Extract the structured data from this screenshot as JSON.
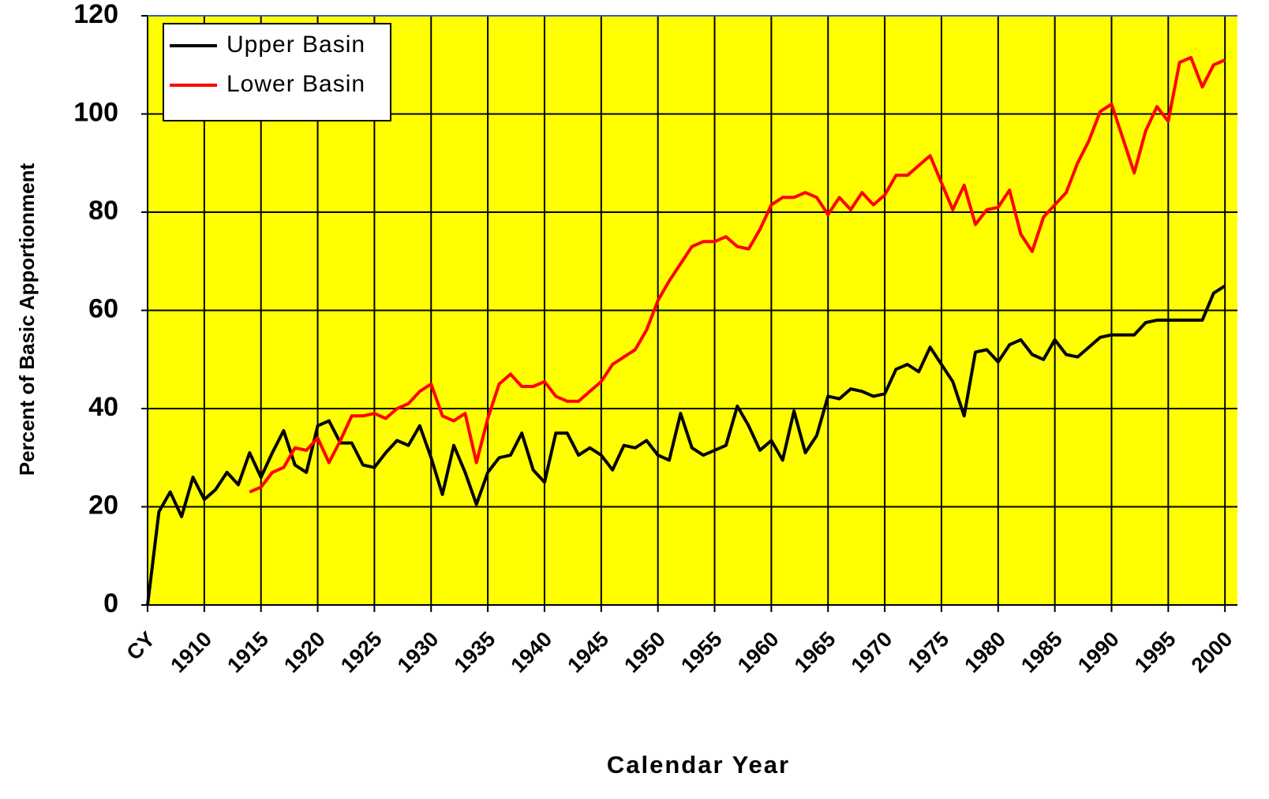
{
  "chart_data": {
    "type": "line",
    "xlabel": "Calendar Year",
    "ylabel": "Percent of Basic Apportionment",
    "x": [
      1905,
      1906,
      1907,
      1908,
      1909,
      1910,
      1911,
      1912,
      1913,
      1914,
      1915,
      1916,
      1917,
      1918,
      1919,
      1920,
      1921,
      1922,
      1923,
      1924,
      1925,
      1926,
      1927,
      1928,
      1929,
      1930,
      1931,
      1932,
      1933,
      1934,
      1935,
      1936,
      1937,
      1938,
      1939,
      1940,
      1941,
      1942,
      1943,
      1944,
      1945,
      1946,
      1947,
      1948,
      1949,
      1950,
      1951,
      1952,
      1953,
      1954,
      1955,
      1956,
      1957,
      1958,
      1959,
      1960,
      1961,
      1962,
      1963,
      1964,
      1965,
      1966,
      1967,
      1968,
      1969,
      1970,
      1971,
      1972,
      1973,
      1974,
      1975,
      1976,
      1977,
      1978,
      1979,
      1980,
      1981,
      1982,
      1983,
      1984,
      1985,
      1986,
      1987,
      1988,
      1989,
      1990,
      1991,
      1992,
      1993,
      1994,
      1995,
      1996,
      1997,
      1998,
      1999,
      2000
    ],
    "series": [
      {
        "name": "Upper Basin",
        "color": "#000000",
        "values": [
          0,
          19,
          23,
          18,
          26,
          21.5,
          23.5,
          27,
          24.5,
          31,
          26,
          31,
          35.5,
          28.5,
          27,
          36.5,
          37.5,
          33,
          33,
          28.5,
          28,
          31,
          33.5,
          32.5,
          36.5,
          30,
          22.5,
          32.5,
          27,
          20.5,
          27,
          30,
          30.5,
          35,
          27.5,
          25,
          35,
          35,
          30.5,
          32,
          30.5,
          27.5,
          32.5,
          32,
          33.5,
          30.5,
          29.5,
          39,
          32,
          30.5,
          31.5,
          32.5,
          40.5,
          36.5,
          31.5,
          33.5,
          29.5,
          39.5,
          31,
          34.5,
          42.5,
          42,
          44,
          43.5,
          42.5,
          43,
          48,
          49,
          47.5,
          52.5,
          49,
          45.5,
          38.5,
          51.5,
          52,
          49.5,
          53,
          54,
          51,
          50,
          54,
          51,
          50.5,
          52.5,
          54.5,
          55,
          55,
          55,
          57.5,
          58,
          58,
          58,
          58,
          58,
          63.5,
          65
        ]
      },
      {
        "name": "Lower Basin",
        "color": "#ff0000",
        "values": [
          null,
          null,
          null,
          null,
          null,
          null,
          null,
          null,
          null,
          23,
          24,
          27,
          28,
          32,
          31.5,
          34,
          29,
          33.5,
          38.5,
          38.5,
          39,
          38,
          40,
          41,
          43.5,
          45,
          38.5,
          37.5,
          39,
          29,
          38,
          45,
          47,
          44.5,
          44.5,
          45.5,
          42.5,
          41.5,
          41.5,
          43.5,
          45.5,
          49,
          50.5,
          52,
          56,
          62,
          66,
          69.5,
          73,
          74,
          74,
          75,
          73,
          72.5,
          76.5,
          81.5,
          83,
          83,
          84,
          83,
          79.5,
          83,
          80.5,
          84,
          81.5,
          83.5,
          87.5,
          87.5,
          89.5,
          91.5,
          86,
          80.5,
          85.5,
          77.5,
          80.5,
          81,
          84.5,
          75.5,
          72,
          79,
          81.5,
          84,
          90,
          94.5,
          100.5,
          102,
          95,
          88,
          96.5,
          101.5,
          98.5,
          110.5,
          111.5,
          105.5,
          110,
          111
        ]
      }
    ],
    "xlim": [
      1905,
      2001.1
    ],
    "ylim": [
      0,
      120
    ],
    "xticks": [
      {
        "value": 1905,
        "label": "CY"
      },
      1910,
      1915,
      1920,
      1925,
      1930,
      1935,
      1940,
      1945,
      1950,
      1955,
      1960,
      1965,
      1970,
      1975,
      1980,
      1985,
      1990,
      1995,
      2000
    ],
    "yticks": [
      0,
      20,
      40,
      60,
      80,
      100,
      120
    ],
    "grid": true,
    "legend": "upper left",
    "plot_background": "#ffff00"
  }
}
